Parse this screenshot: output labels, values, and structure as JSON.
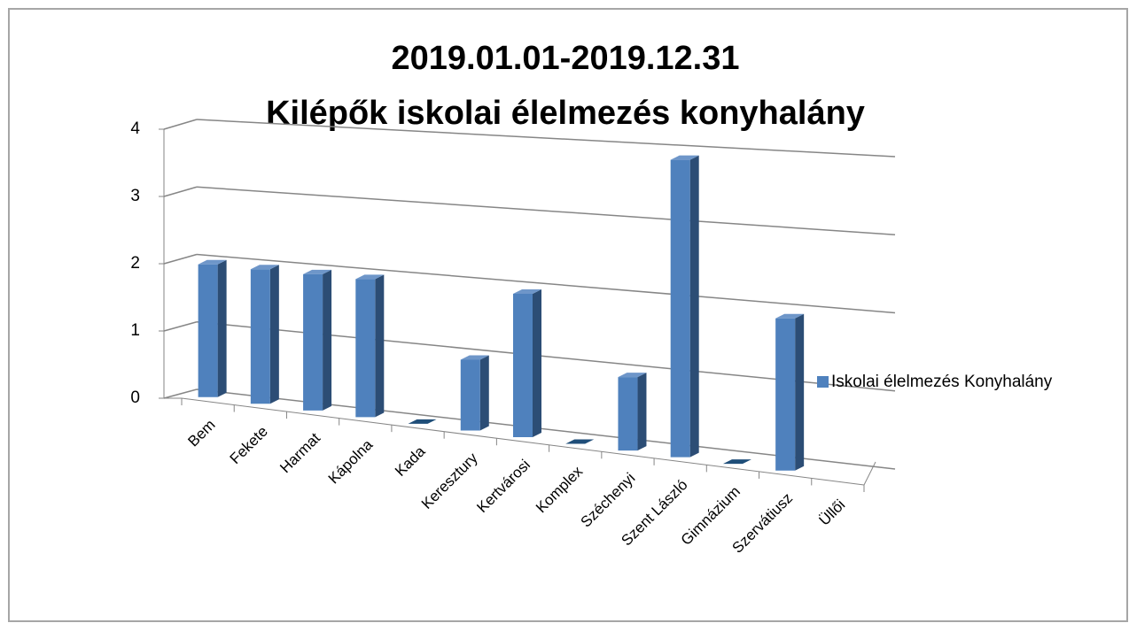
{
  "chart_data": {
    "type": "bar3d",
    "title": "2019.01.01-2019.12.31",
    "subtitle": "Kilépők iskolai élelmezés konyhalány",
    "categories": [
      "Bem",
      "Fekete",
      "Harmat",
      "Kápolna",
      "Kada",
      "Keresztury",
      "Kertvárosi",
      "Komplex",
      "Széchenyi",
      "Szent László",
      "Gimnázium",
      "Szervátiusz",
      "Üllői"
    ],
    "series": [
      {
        "name": "Iskolai élelmezés Konyhalány",
        "color": "#4f81bd",
        "values": [
          2,
          2,
          2,
          2,
          0,
          1,
          2,
          0,
          1,
          4,
          0,
          2,
          null
        ]
      }
    ],
    "ylim": [
      0,
      4
    ],
    "yticks": [
      0,
      1,
      2,
      3,
      4
    ],
    "grid": true,
    "legend": "right"
  }
}
